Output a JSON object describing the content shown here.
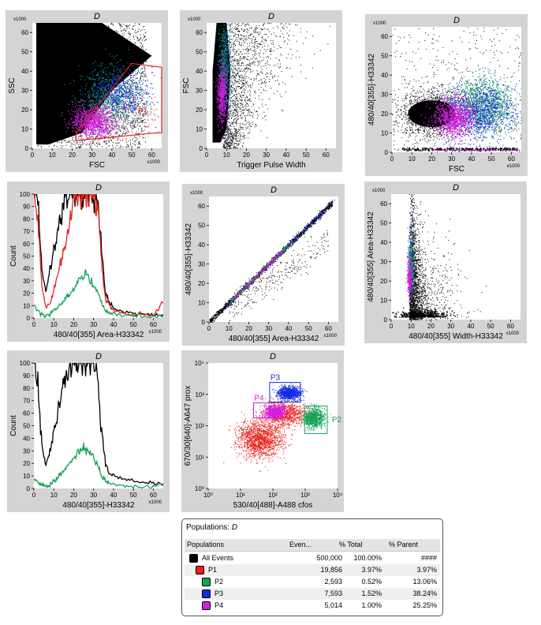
{
  "colors": {
    "all": "#000000",
    "p1": "#e8221c",
    "p2": "#16a35a",
    "p3": "#1428e0",
    "p4": "#d41ee0",
    "panel_bg": "#d4d4d4"
  },
  "plots": [
    {
      "id": "fsc-ssc",
      "type": "scatter",
      "title": "D",
      "xlabel": "FSC",
      "ylabel": "SSC",
      "x_ticks": [
        "0",
        "10",
        "20",
        "30",
        "40",
        "50",
        "60"
      ],
      "y_ticks": [
        "0",
        "10",
        "20",
        "30",
        "40",
        "50",
        "60"
      ],
      "x_mult": "x1000",
      "y_mult": "x1000",
      "xlim": [
        0,
        65
      ],
      "ylim": [
        0,
        65
      ],
      "gates": [
        {
          "label": "P1",
          "color": "#e8221c",
          "points": [
            [
              22,
              4
            ],
            [
              62,
              8
            ],
            [
              65,
              8
            ],
            [
              65,
              42
            ],
            [
              50,
              44
            ],
            [
              22,
              8
            ]
          ]
        }
      ]
    },
    {
      "id": "trigger-fsc",
      "type": "scatter",
      "title": "D",
      "xlabel": "Trigger Pulse Width",
      "ylabel": "FSC",
      "x_ticks": [
        "0",
        "10",
        "20",
        "30",
        "40",
        "50",
        "60"
      ],
      "y_ticks": [
        "0",
        "10",
        "20",
        "30",
        "40",
        "50",
        "60"
      ],
      "x_mult": "",
      "y_mult": "x1000",
      "xlim": [
        0,
        65
      ],
      "ylim": [
        0,
        65
      ]
    },
    {
      "id": "fsc-area",
      "type": "scatter",
      "title": "D",
      "xlabel": "FSC",
      "ylabel": "480/40[355]-H33342",
      "x_ticks": [
        "0",
        "10",
        "20",
        "30",
        "40",
        "50",
        "60"
      ],
      "y_ticks": [
        "0",
        "10",
        "20",
        "30",
        "40",
        "50",
        "60"
      ],
      "x_mult": "x1000",
      "y_mult": "x1000",
      "xlim": [
        0,
        65
      ],
      "ylim": [
        0,
        65
      ]
    },
    {
      "id": "hist-red",
      "type": "histogram",
      "title": "D",
      "xlabel": "480/40[355] Area-H33342",
      "ylabel": "Count",
      "x_ticks": [
        "0",
        "10",
        "20",
        "30",
        "40",
        "50",
        "60"
      ],
      "y_ticks": [
        "0",
        "10",
        "20",
        "30",
        "40",
        "50",
        "60",
        "70",
        "80",
        "90",
        "100"
      ],
      "x_mult": "x1000",
      "y_mult": "",
      "xlim": [
        0,
        65
      ],
      "ylim": [
        0,
        100
      ]
    },
    {
      "id": "area-height",
      "type": "scatter",
      "title": "D",
      "xlabel": "480/40[355] Area-H33342",
      "ylabel": "480/40[355]-H33342",
      "x_ticks": [
        "0",
        "10",
        "20",
        "30",
        "40",
        "50",
        "60"
      ],
      "y_ticks": [
        "0",
        "10",
        "20",
        "30",
        "40",
        "50",
        "60"
      ],
      "x_mult": "x1000",
      "y_mult": "x1000",
      "xlim": [
        0,
        65
      ],
      "ylim": [
        0,
        65
      ]
    },
    {
      "id": "width-area",
      "type": "scatter",
      "title": "D",
      "xlabel": "480/40[355] Width-H33342",
      "ylabel": "480/40[355] Area-H33342",
      "x_ticks": [
        "0",
        "10",
        "20",
        "30",
        "40",
        "50",
        "60"
      ],
      "y_ticks": [
        "0",
        "10",
        "20",
        "30",
        "40",
        "50",
        "60"
      ],
      "x_mult": "x1000",
      "y_mult": "x1000",
      "xlim": [
        0,
        65
      ],
      "ylim": [
        0,
        65
      ]
    },
    {
      "id": "hist-green",
      "type": "histogram",
      "title": "D",
      "xlabel": "480/40[355]-H33342",
      "ylabel": "Count",
      "x_ticks": [
        "0",
        "10",
        "20",
        "30",
        "40",
        "50",
        "60"
      ],
      "y_ticks": [
        "0",
        "10",
        "20",
        "30",
        "40",
        "50",
        "60",
        "70",
        "80",
        "90",
        "100"
      ],
      "x_mult": "x1000",
      "y_mult": "",
      "xlim": [
        0,
        65
      ],
      "ylim": [
        0,
        100
      ]
    },
    {
      "id": "cfos-prox",
      "type": "scatter",
      "title": "D",
      "xlabel": "530/40[488]-A488 cfos",
      "ylabel": "670/30[640]-A647 prox",
      "x_ticks": [
        "10⁰",
        "10¹",
        "10²",
        "10³",
        "10⁴"
      ],
      "y_ticks": [
        "10⁰",
        "10¹",
        "10²",
        "10³",
        "10⁴"
      ],
      "x_mult": "",
      "y_mult": "",
      "xlim": [
        0,
        4
      ],
      "ylim": [
        0,
        4
      ],
      "log": true,
      "gates": [
        {
          "label": "P3",
          "color": "#1428e0",
          "rect": [
            1.9,
            2.75,
            2.85,
            3.38
          ]
        },
        {
          "label": "P4",
          "color": "#d41ee0",
          "rect": [
            1.4,
            2.25,
            2.3,
            2.73
          ]
        },
        {
          "label": "P2",
          "color": "#16a35a",
          "rect": [
            2.98,
            1.75,
            3.68,
            2.63
          ]
        }
      ]
    }
  ],
  "chart_data": [
    {
      "type": "scatter",
      "title": "D",
      "xlabel": "FSC",
      "ylabel": "SSC",
      "xlim": [
        0,
        65000
      ],
      "ylim": [
        0,
        65000
      ],
      "gate": "P1"
    },
    {
      "type": "scatter",
      "title": "D",
      "xlabel": "Trigger Pulse Width",
      "ylabel": "FSC",
      "xlim": [
        0,
        65
      ],
      "ylim": [
        0,
        65000
      ]
    },
    {
      "type": "scatter",
      "title": "D",
      "xlabel": "FSC",
      "ylabel": "480/40[355]-H33342",
      "xlim": [
        0,
        65000
      ],
      "ylim": [
        0,
        65000
      ]
    },
    {
      "type": "area",
      "title": "D",
      "xlabel": "480/40[355] Area-H33342",
      "ylabel": "Count",
      "xlim": [
        0,
        65000
      ],
      "ylim": [
        0,
        100
      ],
      "x": [
        0,
        2,
        4,
        6,
        8,
        10,
        12,
        14,
        16,
        18,
        20,
        22,
        24,
        26,
        28,
        30,
        32,
        34,
        36,
        38,
        40,
        45,
        50,
        55,
        60,
        65
      ],
      "series": [
        {
          "color": "#000000",
          "values": [
            100,
            95,
            40,
            20,
            38,
            56,
            70,
            85,
            100,
            100,
            100,
            100,
            100,
            100,
            100,
            100,
            98,
            55,
            20,
            12,
            8,
            5,
            4,
            3,
            3,
            3
          ]
        },
        {
          "color": "#e8221c",
          "values": [
            100,
            80,
            25,
            8,
            12,
            22,
            35,
            48,
            62,
            78,
            95,
            100,
            100,
            100,
            100,
            100,
            92,
            45,
            15,
            10,
            7,
            4,
            3,
            3,
            2,
            12
          ]
        },
        {
          "color": "#16a35a",
          "values": [
            10,
            6,
            3,
            2,
            3,
            6,
            9,
            12,
            16,
            20,
            24,
            28,
            32,
            36,
            30,
            26,
            22,
            12,
            6,
            4,
            3,
            2,
            2,
            1,
            1,
            1
          ]
        }
      ]
    },
    {
      "type": "scatter",
      "title": "D",
      "xlabel": "480/40[355] Area-H33342",
      "ylabel": "480/40[355]-H33342",
      "xlim": [
        0,
        65000
      ],
      "ylim": [
        0,
        65000
      ]
    },
    {
      "type": "scatter",
      "title": "D",
      "xlabel": "480/40[355] Width-H33342",
      "ylabel": "480/40[355] Area-H33342",
      "xlim": [
        0,
        65000
      ],
      "ylim": [
        0,
        65000
      ]
    },
    {
      "type": "area",
      "title": "D",
      "xlabel": "480/40[355]-H33342",
      "ylabel": "Count",
      "xlim": [
        0,
        65000
      ],
      "ylim": [
        0,
        100
      ],
      "x": [
        0,
        2,
        4,
        6,
        8,
        10,
        12,
        14,
        16,
        18,
        20,
        22,
        24,
        26,
        28,
        30,
        32,
        34,
        36,
        38,
        40,
        45,
        50,
        55,
        60,
        65
      ],
      "series": [
        {
          "color": "#000000",
          "values": [
            100,
            80,
            35,
            18,
            30,
            45,
            60,
            75,
            90,
            100,
            100,
            100,
            100,
            100,
            100,
            100,
            90,
            45,
            20,
            12,
            10,
            8,
            6,
            5,
            4,
            3
          ]
        },
        {
          "color": "#16a35a",
          "values": [
            8,
            5,
            3,
            2,
            3,
            6,
            9,
            12,
            16,
            20,
            24,
            28,
            31,
            33,
            28,
            24,
            19,
            10,
            6,
            4,
            3,
            2,
            2,
            1,
            1,
            4
          ]
        }
      ]
    },
    {
      "type": "scatter",
      "title": "D",
      "xlabel": "530/40[488]-A488 cfos",
      "ylabel": "670/30[640]-A647 prox",
      "x_scale": "log",
      "y_scale": "log",
      "xlim": [
        1,
        10000
      ],
      "ylim": [
        1,
        10000
      ],
      "gates": [
        "P2",
        "P3",
        "P4"
      ]
    }
  ],
  "table": {
    "title_prefix": "Populations: ",
    "title_name": "D",
    "headers": [
      "Populations",
      "Even...",
      "% Total",
      "% Parent"
    ],
    "rows": [
      {
        "name": "All Events",
        "events": "500,000",
        "total": "100.00%",
        "parent": "####",
        "color": "#000000",
        "indent": 0
      },
      {
        "name": "P1",
        "events": "19,856",
        "total": "3.97%",
        "parent": "3.97%",
        "color": "#e8221c",
        "indent": 1
      },
      {
        "name": "P2",
        "events": "2,593",
        "total": "0.52%",
        "parent": "13.06%",
        "color": "#16a35a",
        "indent": 2
      },
      {
        "name": "P3",
        "events": "7,593",
        "total": "1.52%",
        "parent": "38.24%",
        "color": "#1428e0",
        "indent": 2
      },
      {
        "name": "P4",
        "events": "5,014",
        "total": "1.00%",
        "parent": "25.25%",
        "color": "#d41ee0",
        "indent": 2
      }
    ]
  }
}
